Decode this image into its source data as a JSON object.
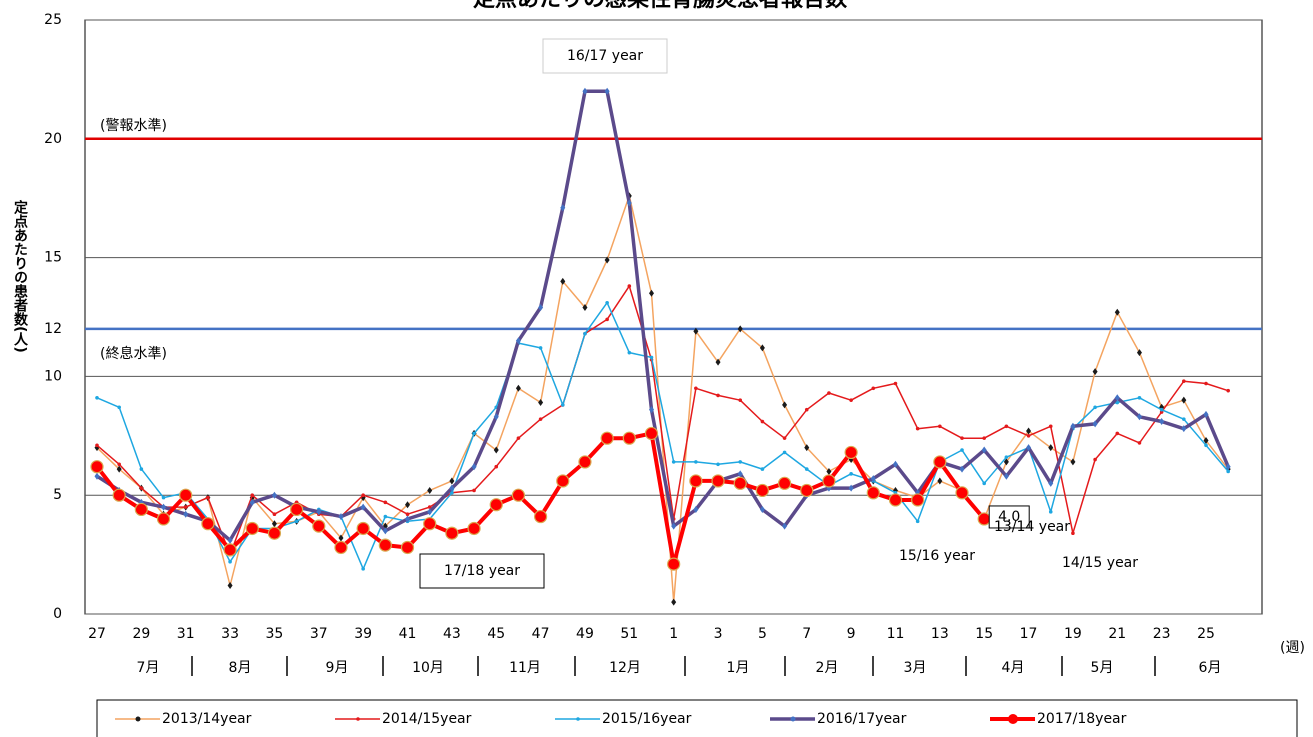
{
  "chart_data": {
    "type": "line",
    "title": "定点あたりの感染性胃腸炎患者報告数",
    "y_label": "定点あたりの患者数(人)",
    "x_label": "(週)",
    "categories": [
      27,
      null,
      29,
      null,
      31,
      null,
      33,
      null,
      35,
      null,
      37,
      null,
      39,
      null,
      41,
      null,
      43,
      null,
      45,
      null,
      47,
      null,
      49,
      null,
      51,
      null,
      1,
      null,
      3,
      null,
      5,
      null,
      7,
      null,
      9,
      null,
      11,
      null,
      13,
      null,
      15,
      null,
      17,
      null,
      19,
      null,
      21,
      null,
      23,
      null,
      25,
      null
    ],
    "months": [
      "7月",
      "8月",
      "9月",
      "10月",
      "11月",
      "12月",
      "1月",
      "2月",
      "3月",
      "4月",
      "5月",
      "6月"
    ],
    "ylim": [
      0,
      25
    ],
    "yticks": [
      0,
      5,
      10,
      12,
      15,
      20,
      25
    ],
    "grid": true,
    "legend": "bottom",
    "reference_lines": [
      {
        "value": 20,
        "label": "(警報水準)",
        "color": "#e00000"
      },
      {
        "value": 12,
        "label": "(終息水準)",
        "color": "#4472c4"
      }
    ],
    "annotations": [
      "16/17 year",
      "17/18 year",
      "13/14 year",
      "15/16 year",
      "14/15 year"
    ],
    "series": [
      {
        "name": "2013/14year",
        "color": "#f4a460",
        "marker_color": "#1a1a1a",
        "values": [
          7.0,
          6.1,
          5.3,
          4.2,
          4.5,
          4.9,
          1.2,
          4.9,
          3.8,
          3.9,
          4.3,
          3.2,
          4.9,
          3.7,
          4.6,
          5.2,
          5.6,
          7.6,
          6.9,
          9.5,
          8.9,
          14.0,
          12.9,
          14.9,
          17.6,
          13.5,
          0.5,
          11.9,
          10.6,
          12.0,
          11.2,
          8.8,
          7.0,
          6.0,
          6.5,
          5.6,
          5.2,
          4.9,
          5.6,
          5.2,
          4.0,
          6.4,
          7.7,
          7.0,
          6.4,
          10.2,
          12.7,
          11.0,
          8.7,
          9.0,
          7.3,
          6.1
        ]
      },
      {
        "name": "2014/15year",
        "color": "#e41a1c",
        "marker_color": "#e41a1c",
        "values": [
          7.1,
          6.3,
          5.3,
          4.5,
          4.5,
          4.9,
          2.5,
          5.0,
          4.2,
          4.7,
          4.2,
          4.1,
          5.0,
          4.7,
          4.2,
          4.5,
          5.1,
          5.2,
          6.2,
          7.4,
          8.2,
          8.8,
          11.8,
          12.4,
          13.8,
          10.7,
          4.0,
          9.5,
          9.2,
          9.0,
          8.1,
          7.4,
          8.6,
          9.3,
          9.0,
          9.5,
          9.7,
          7.8,
          7.9,
          7.4,
          7.4,
          7.9,
          7.5,
          7.9,
          3.4,
          6.5,
          7.6,
          7.2,
          8.5,
          9.8,
          9.7,
          9.4
        ]
      },
      {
        "name": "2015/16year",
        "color": "#1ea7e1",
        "marker_color": "#1ea7e1",
        "values": [
          9.1,
          8.7,
          6.1,
          4.9,
          5.1,
          4.0,
          2.2,
          3.6,
          3.6,
          3.9,
          4.4,
          4.1,
          1.9,
          4.1,
          3.9,
          4.0,
          5.1,
          7.6,
          8.7,
          11.4,
          11.2,
          8.8,
          11.8,
          13.1,
          11.0,
          10.8,
          6.4,
          6.4,
          6.3,
          6.4,
          6.1,
          6.8,
          6.1,
          5.4,
          5.9,
          5.6,
          5.1,
          3.9,
          6.4,
          6.9,
          5.5,
          6.6,
          7.0,
          4.3,
          7.8,
          8.7,
          8.9,
          9.1,
          8.6,
          8.2,
          7.1,
          6.0
        ]
      },
      {
        "name": "2016/17year",
        "color": "#5b4a8b",
        "marker_color": "#4472c4",
        "values": [
          5.8,
          5.2,
          4.7,
          4.5,
          4.2,
          3.9,
          3.1,
          4.7,
          5.0,
          4.5,
          4.3,
          4.1,
          4.5,
          3.5,
          4.0,
          4.3,
          5.3,
          6.2,
          8.3,
          11.5,
          12.9,
          17.1,
          22.0,
          22.0,
          17.3,
          8.6,
          3.7,
          4.4,
          5.6,
          5.9,
          4.4,
          3.7,
          5.0,
          5.3,
          5.3,
          5.7,
          6.3,
          5.1,
          6.4,
          6.1,
          6.9,
          5.8,
          7.0,
          5.5,
          7.9,
          8.0,
          9.1,
          8.3,
          8.1,
          7.8,
          8.4,
          6.2
        ]
      },
      {
        "name": "2017/18year",
        "color": "#ff0000",
        "marker_color": "#ff0000",
        "values": [
          6.2,
          5.0,
          4.4,
          4.0,
          5.0,
          3.8,
          2.7,
          3.6,
          3.4,
          4.4,
          3.7,
          2.8,
          3.6,
          2.9,
          2.8,
          3.8,
          3.4,
          3.6,
          4.6,
          5.0,
          4.1,
          5.6,
          6.4,
          7.4,
          7.4,
          7.6,
          2.1,
          5.6,
          5.6,
          5.5,
          5.2,
          5.5,
          5.2,
          5.6,
          6.8,
          5.1,
          4.8,
          4.8,
          6.4,
          5.1,
          4.0,
          null,
          null,
          null,
          null,
          null,
          null,
          null,
          null,
          null,
          null,
          null
        ],
        "value_labels": [
          null,
          null,
          null,
          null,
          null,
          null,
          null,
          null,
          null,
          null,
          null,
          null,
          null,
          null,
          null,
          null,
          null,
          null,
          null,
          null,
          null,
          null,
          null,
          null,
          null,
          null,
          null,
          null,
          null,
          null,
          null,
          null,
          null,
          null,
          null,
          null,
          null,
          null,
          null,
          null,
          "4.0",
          null,
          null,
          null,
          null,
          null,
          null,
          null,
          null,
          null,
          null,
          null
        ]
      }
    ]
  }
}
